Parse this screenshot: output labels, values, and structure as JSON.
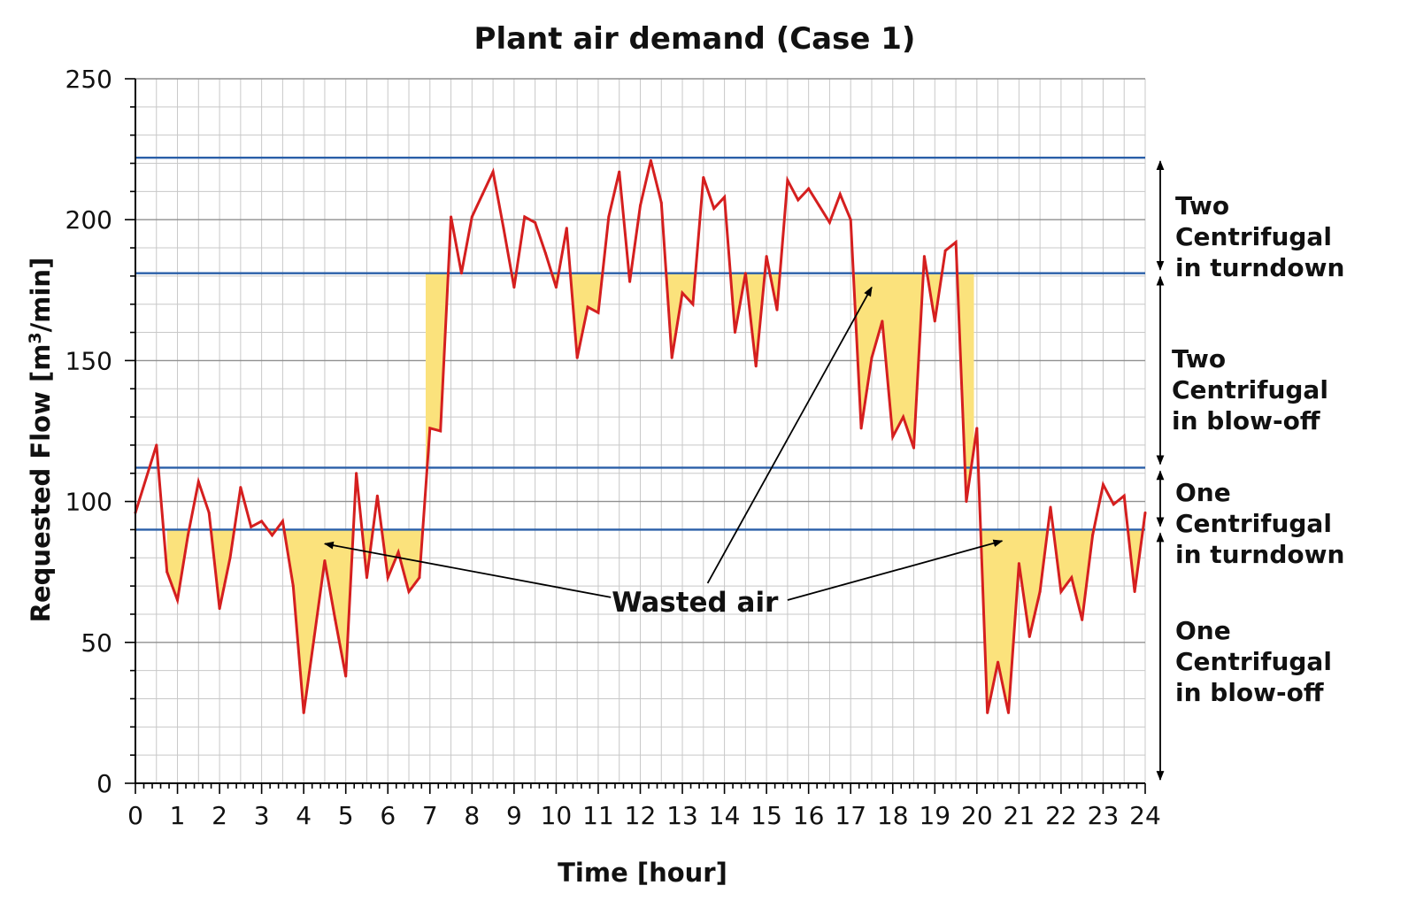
{
  "chart_data": {
    "type": "line",
    "title": "Plant air demand (Case 1)",
    "xlabel": "Time [hour]",
    "ylabel_main": "Requested Flow [m",
    "ylabel_sup": "3",
    "ylabel_end": "/min]",
    "xlim": [
      0,
      24
    ],
    "ylim": [
      0,
      250
    ],
    "x_ticks": [
      "0",
      "1",
      "2",
      "3",
      "4",
      "5",
      "6",
      "7",
      "8",
      "9",
      "10",
      "11",
      "12",
      "13",
      "14",
      "15",
      "16",
      "17",
      "18",
      "19",
      "20",
      "21",
      "22",
      "23",
      "24"
    ],
    "y_ticks": [
      "0",
      "50",
      "100",
      "150",
      "200",
      "250"
    ],
    "grid": true,
    "series": [
      {
        "color": "#d51f1f",
        "x": [
          0,
          0.5,
          0.75,
          1,
          1.25,
          1.5,
          1.75,
          2,
          2.25,
          2.5,
          2.75,
          3,
          3.25,
          3.5,
          3.75,
          4,
          4.25,
          4.5,
          4.75,
          5,
          5.25,
          5.5,
          5.75,
          6,
          6.25,
          6.5,
          6.75,
          7,
          7.25,
          7.5,
          7.75,
          8,
          8.25,
          8.5,
          8.75,
          9,
          9.25,
          9.5,
          9.75,
          10,
          10.25,
          10.5,
          10.75,
          11,
          11.25,
          11.5,
          11.75,
          12,
          12.25,
          12.5,
          12.75,
          13,
          13.25,
          13.5,
          13.75,
          14,
          14.25,
          14.5,
          14.75,
          15,
          15.25,
          15.5,
          15.75,
          16,
          16.25,
          16.5,
          16.75,
          17,
          17.25,
          17.5,
          17.75,
          18,
          18.25,
          18.5,
          18.75,
          19,
          19.25,
          19.5,
          19.75,
          20,
          20.25,
          20.5,
          20.75,
          21,
          21.25,
          21.5,
          21.75,
          22,
          22.25,
          22.5,
          22.75,
          23,
          23.25,
          23.5,
          23.75,
          24
        ],
        "values": [
          96,
          120,
          75,
          65,
          88,
          107,
          96,
          62,
          80,
          105,
          91,
          93,
          88,
          93,
          70,
          25,
          52,
          79,
          58,
          38,
          110,
          73,
          102,
          73,
          82,
          68,
          73,
          126,
          125,
          201,
          181,
          201,
          209,
          217,
          197,
          176,
          201,
          199,
          188,
          176,
          197,
          151,
          169,
          167,
          201,
          217,
          178,
          205,
          221,
          206,
          151,
          174,
          170,
          215,
          204,
          208,
          160,
          181,
          148,
          187,
          168,
          214,
          207,
          211,
          205,
          199,
          209,
          200,
          126,
          151,
          164,
          123,
          130,
          119,
          187,
          164,
          189,
          192,
          100,
          126,
          25,
          43,
          25,
          78,
          52,
          68,
          98,
          68,
          73,
          58,
          88,
          106,
          99,
          102,
          68,
          96
        ]
      }
    ],
    "thresholds": [
      {
        "y": 222
      },
      {
        "y": 181
      },
      {
        "y": 112
      },
      {
        "y": 90
      }
    ],
    "bands": [
      {
        "label_lines": [
          "Two",
          "Centrifugal",
          "in turndown"
        ],
        "from": 181,
        "to": 222
      },
      {
        "label_lines": [
          "Two",
          "Centrifugal",
          "in blow-off"
        ],
        "from": 112,
        "to": 181
      },
      {
        "label_lines": [
          "One",
          "Centrifugal",
          "in turndown"
        ],
        "from": 90,
        "to": 112
      },
      {
        "label_lines": [
          "One",
          "Centrifugal",
          "in blow-off"
        ],
        "from": 0,
        "to": 90
      }
    ],
    "waste_regions": [
      {
        "from_x": 0.75,
        "to_x": 6.9,
        "ceiling": 90
      },
      {
        "from_x": 6.9,
        "to_x": 19.93,
        "ceiling": 181
      },
      {
        "from_x": 19.93,
        "to_x": 24,
        "ceiling": 90
      }
    ],
    "annotation": {
      "text": "Wasted air",
      "x": 13.3,
      "y": 64,
      "targets": [
        {
          "x": 4.5,
          "y": 85,
          "from_x": 11.3,
          "from_y": 66
        },
        {
          "x": 17.5,
          "y": 176,
          "from_x": 13.6,
          "from_y": 71
        },
        {
          "x": 20.6,
          "y": 86,
          "from_x": 15.5,
          "from_y": 65
        }
      ]
    },
    "colors": {
      "series": "#d51f1f",
      "threshold": "#2a5fa8",
      "waste_fill": "#fbe27c"
    }
  }
}
